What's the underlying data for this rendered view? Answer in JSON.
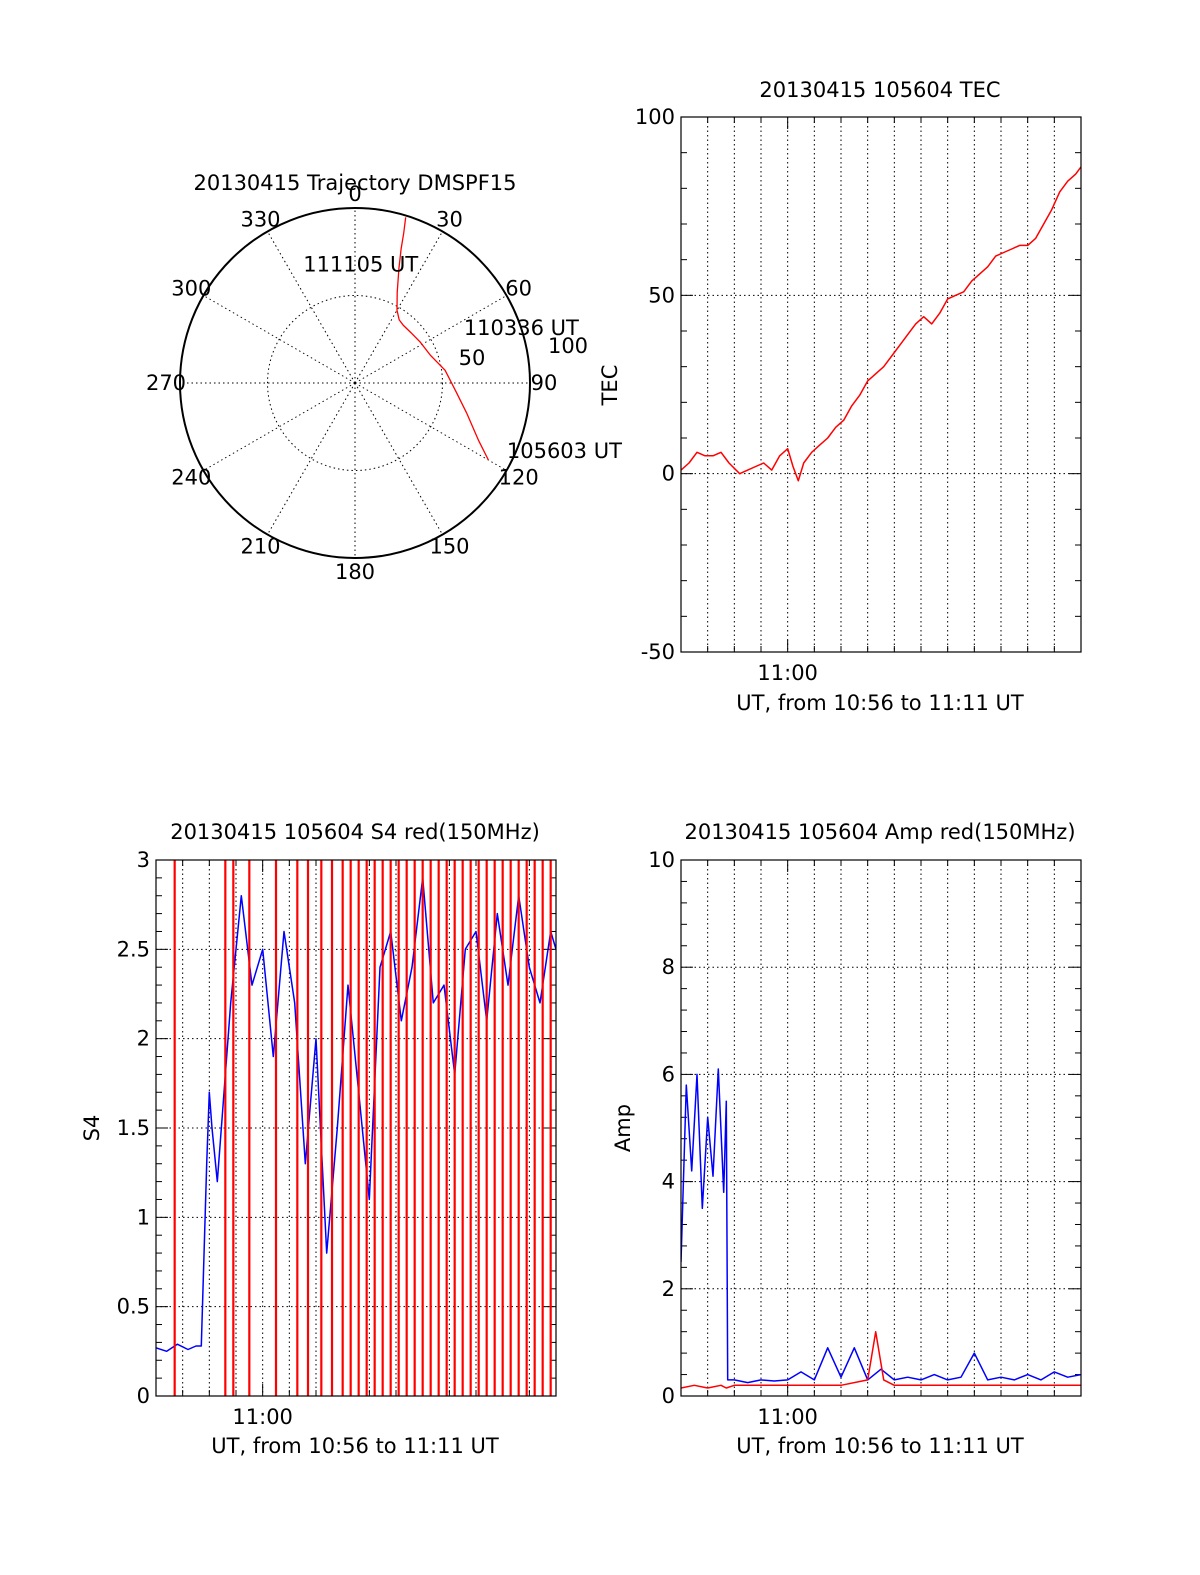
{
  "chart_data": [
    {
      "type": "scatter",
      "title": "20130415 Trajectory DMSPF15",
      "projection": "polar",
      "angle_ticks": [
        "0",
        "30",
        "60",
        "90",
        "120",
        "150",
        "180",
        "210",
        "240",
        "270",
        "300",
        "330"
      ],
      "radius_ticks": [
        "50",
        "100"
      ],
      "radius_range": [
        0,
        100
      ],
      "series": [
        {
          "color": "#ff0000",
          "points": [
            [
              120,
              88
            ],
            [
              115,
              78
            ],
            [
              105,
              66
            ],
            [
              95,
              58
            ],
            [
              82,
              52
            ],
            [
              70,
              46
            ],
            [
              58,
              44
            ],
            [
              48,
              43
            ],
            [
              40,
              43
            ],
            [
              35,
              44
            ],
            [
              30,
              48
            ],
            [
              25,
              57
            ],
            [
              21,
              70
            ],
            [
              19,
              81
            ],
            [
              18,
              90
            ],
            [
              17,
              99
            ]
          ]
        }
      ],
      "annotations": [
        {
          "text": "111105 UT",
          "angle": 339,
          "radius": 73
        },
        {
          "text": "110336 UT",
          "angle": 64,
          "radius": 73
        },
        {
          "text": "105603 UT",
          "angle": 113,
          "radius": 98
        }
      ]
    },
    {
      "type": "line",
      "title": "20130415 105604 TEC",
      "xlabel": "UT, from 10:56 to 11:11 UT",
      "ylabel": "TEC",
      "ylim": [
        -50,
        100
      ],
      "y_ticks": [
        "-50",
        "0",
        "50",
        "100"
      ],
      "x_ticks": [
        {
          "value": 4,
          "label": "11:00"
        }
      ],
      "grid": true,
      "series": [
        {
          "color": "#ff0000",
          "x": [
            0,
            0.3,
            0.6,
            0.9,
            1.2,
            1.5,
            1.8,
            2.2,
            2.5,
            2.8,
            3.1,
            3.4,
            3.7,
            4.0,
            4.2,
            4.4,
            4.6,
            4.9,
            5.2,
            5.5,
            5.8,
            6.1,
            6.4,
            6.7,
            7.0,
            7.3,
            7.6,
            7.9,
            8.2,
            8.5,
            8.8,
            9.1,
            9.4,
            9.7,
            10.0,
            10.3,
            10.6,
            10.9,
            11.2,
            11.5,
            11.8,
            12.1,
            12.4,
            12.7,
            13.0,
            13.3,
            13.6,
            13.9,
            14.2,
            14.5,
            14.8,
            15.0
          ],
          "y": [
            1,
            3,
            6,
            5,
            5,
            6,
            3,
            0,
            1,
            2,
            3,
            1,
            5,
            7,
            2,
            -2,
            3,
            6,
            8,
            10,
            13,
            15,
            19,
            22,
            26,
            28,
            30,
            33,
            36,
            39,
            42,
            44,
            42,
            45,
            49,
            50,
            51,
            54,
            56,
            58,
            61,
            62,
            63,
            64,
            64,
            66,
            70,
            74,
            79,
            82,
            84,
            86
          ]
        }
      ]
    },
    {
      "type": "line",
      "title": "20130415 105604 S4 red(150MHz)",
      "xlabel": "UT, from 10:56 to 11:11 UT",
      "ylabel": "S4",
      "ylim": [
        0,
        3
      ],
      "y_ticks": [
        "0",
        "0.5",
        "1",
        "1.5",
        "2",
        "2.5",
        "3"
      ],
      "x_ticks": [
        {
          "value": 4,
          "label": "11:00"
        }
      ],
      "grid": true,
      "series": [
        {
          "color": "#0000ff",
          "x": [
            0,
            0.4,
            0.8,
            1.2,
            1.5,
            1.7,
            1.9,
            2.0,
            2.1,
            2.3,
            2.5,
            2.8,
            3.2,
            3.6,
            4.0,
            4.4,
            4.8,
            5.2,
            5.6,
            6.0,
            6.4,
            6.8,
            7.2,
            7.6,
            8.0,
            8.4,
            8.8,
            9.2,
            9.6,
            10.0,
            10.4,
            10.8,
            11.2,
            11.6,
            12.0,
            12.4,
            12.8,
            13.2,
            13.6,
            14.0,
            14.4,
            14.8,
            15.0
          ],
          "y": [
            0.27,
            0.25,
            0.29,
            0.26,
            0.28,
            0.28,
            1.3,
            1.7,
            1.5,
            1.2,
            1.6,
            2.2,
            2.8,
            2.3,
            2.5,
            1.9,
            2.6,
            2.2,
            1.3,
            2.0,
            0.8,
            1.5,
            2.3,
            1.7,
            1.1,
            2.4,
            2.6,
            2.1,
            2.4,
            2.9,
            2.2,
            2.3,
            1.8,
            2.5,
            2.6,
            2.1,
            2.7,
            2.3,
            2.8,
            2.4,
            2.2,
            2.6,
            2.5
          ]
        },
        {
          "color": "#ff0000",
          "spikes_x": [
            0.7,
            2.6,
            2.9,
            3.5,
            4.5,
            5.3,
            5.7,
            6.2,
            6.6,
            7.0,
            7.3,
            7.6,
            7.9,
            8.2,
            8.5,
            8.8,
            9.1,
            9.4,
            9.7,
            10.0,
            10.3,
            10.6,
            10.9,
            11.2,
            11.5,
            11.8,
            12.1,
            12.4,
            12.7,
            13.0,
            13.3,
            13.6,
            13.9,
            14.2,
            14.5,
            14.8
          ],
          "spike_y": 3
        }
      ]
    },
    {
      "type": "line",
      "title": "20130415 105604 Amp red(150MHz)",
      "xlabel": "UT, from 10:56 to 11:11 UT",
      "ylabel": "Amp",
      "ylim": [
        0,
        10
      ],
      "y_ticks": [
        "0",
        "2",
        "4",
        "6",
        "8",
        "10"
      ],
      "x_ticks": [
        {
          "value": 4,
          "label": "11:00"
        }
      ],
      "grid": true,
      "series": [
        {
          "color": "#0000ff",
          "x": [
            0,
            0.2,
            0.4,
            0.6,
            0.8,
            1.0,
            1.2,
            1.4,
            1.6,
            1.7,
            1.75,
            2.0,
            2.5,
            3.0,
            3.5,
            4.0,
            4.5,
            5.0,
            5.5,
            6.0,
            6.5,
            7.0,
            7.5,
            8.0,
            8.5,
            9.0,
            9.5,
            10.0,
            10.5,
            11.0,
            11.5,
            12.0,
            12.5,
            13.0,
            13.5,
            14.0,
            14.5,
            15.0
          ],
          "y": [
            2.5,
            5.8,
            4.2,
            6.0,
            3.5,
            5.2,
            4.1,
            6.1,
            3.8,
            5.5,
            0.3,
            0.3,
            0.25,
            0.3,
            0.28,
            0.3,
            0.45,
            0.3,
            0.9,
            0.35,
            0.9,
            0.3,
            0.5,
            0.3,
            0.35,
            0.3,
            0.4,
            0.3,
            0.35,
            0.8,
            0.3,
            0.35,
            0.3,
            0.4,
            0.3,
            0.45,
            0.35,
            0.4
          ]
        },
        {
          "color": "#ff0000",
          "x": [
            0,
            0.5,
            1.0,
            1.5,
            1.7,
            2.0,
            3.0,
            4.0,
            5.0,
            6.0,
            7.0,
            7.3,
            7.6,
            8.0,
            9.0,
            10.0,
            11.0,
            12.0,
            13.0,
            14.0,
            15.0
          ],
          "y": [
            0.15,
            0.2,
            0.15,
            0.2,
            0.15,
            0.2,
            0.2,
            0.2,
            0.2,
            0.2,
            0.3,
            1.2,
            0.3,
            0.2,
            0.2,
            0.2,
            0.2,
            0.2,
            0.2,
            0.2,
            0.2
          ]
        }
      ]
    }
  ]
}
